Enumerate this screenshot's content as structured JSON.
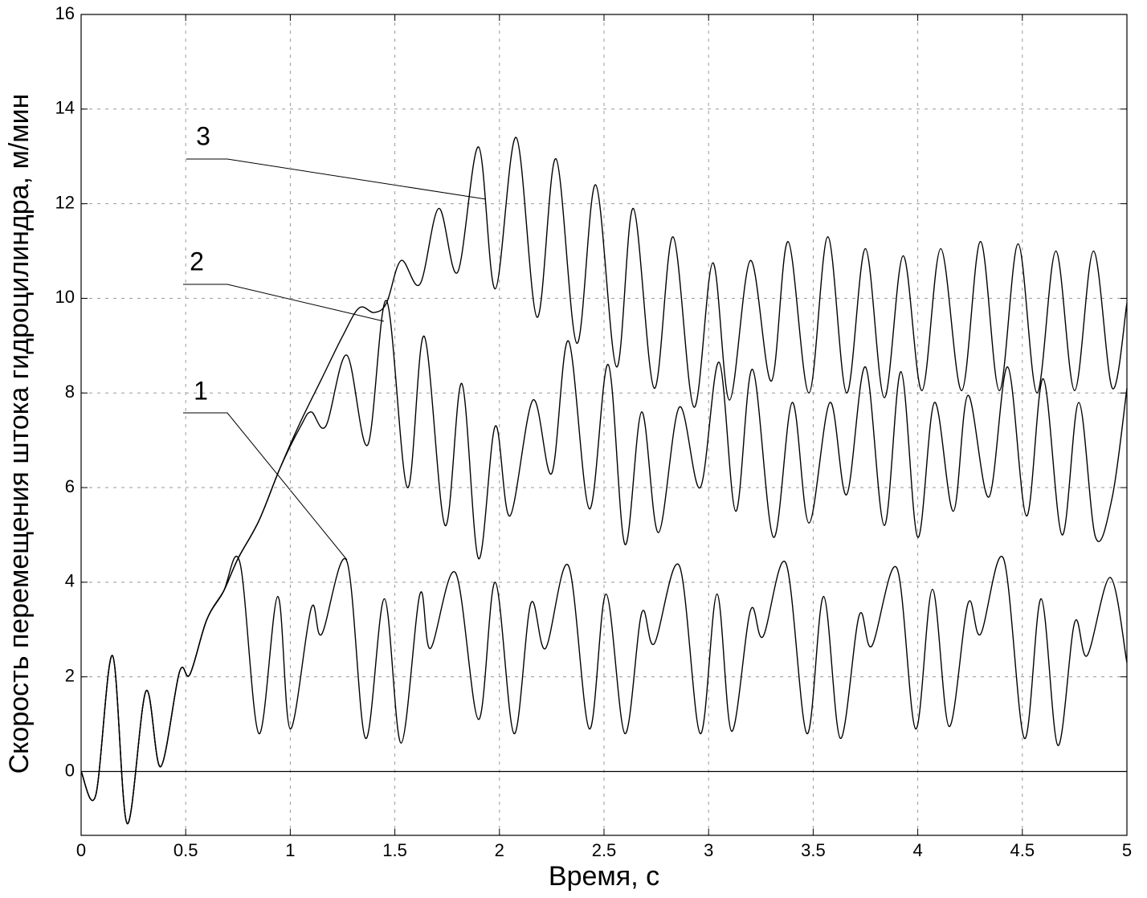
{
  "chart_data": {
    "type": "line",
    "xlabel": "Время, с",
    "ylabel": "Скорость перемещения штока гидроцилиндра, м/мин",
    "xlim": [
      0,
      5
    ],
    "ylim": [
      -1.35,
      16
    ],
    "xticks": [
      0,
      0.5,
      1,
      1.5,
      2,
      2.5,
      3,
      3.5,
      4,
      4.5,
      5
    ],
    "yticks": [
      0,
      2,
      4,
      6,
      8,
      10,
      12,
      14,
      16
    ],
    "grid": true,
    "series": [
      {
        "name": "1",
        "color": "#000000",
        "x": [
          0,
          0.07,
          0.15,
          0.22,
          0.31,
          0.38,
          0.47,
          0.52,
          0.6,
          0.68,
          0.76,
          0.85,
          0.94,
          1.0,
          1.1,
          1.15,
          1.27,
          1.36,
          1.45,
          1.53,
          1.62,
          1.67,
          1.79,
          1.9,
          1.98,
          2.07,
          2.15,
          2.22,
          2.33,
          2.43,
          2.51,
          2.6,
          2.68,
          2.74,
          2.86,
          2.96,
          3.04,
          3.11,
          3.2,
          3.26,
          3.37,
          3.47,
          3.55,
          3.63,
          3.72,
          3.78,
          3.9,
          3.99,
          4.07,
          4.15,
          4.24,
          4.3,
          4.41,
          4.51,
          4.59,
          4.67,
          4.75,
          4.81,
          4.92,
          5.0
        ],
        "values": [
          0,
          -0.5,
          2.45,
          -1.1,
          1.7,
          0.1,
          2.1,
          2.05,
          3.2,
          3.8,
          4.4,
          0.8,
          3.7,
          0.9,
          3.45,
          2.9,
          4.45,
          0.7,
          3.65,
          0.6,
          3.75,
          2.6,
          4.2,
          1.1,
          4.0,
          0.8,
          3.55,
          2.6,
          4.35,
          0.9,
          3.75,
          0.8,
          3.35,
          2.7,
          4.35,
          0.8,
          3.75,
          0.85,
          3.4,
          2.85,
          4.4,
          0.8,
          3.7,
          0.7,
          3.3,
          2.65,
          4.3,
          0.9,
          3.85,
          0.95,
          3.55,
          2.9,
          4.5,
          0.7,
          3.65,
          0.55,
          3.15,
          2.45,
          4.1,
          2.3
        ]
      },
      {
        "name": "2",
        "color": "#000000",
        "x": [
          0,
          0.07,
          0.15,
          0.22,
          0.31,
          0.38,
          0.47,
          0.52,
          0.6,
          0.68,
          0.75,
          0.85,
          0.95,
          1.05,
          1.1,
          1.17,
          1.27,
          1.37,
          1.46,
          1.56,
          1.64,
          1.74,
          1.82,
          1.9,
          1.98,
          2.05,
          2.16,
          2.25,
          2.33,
          2.43,
          2.52,
          2.6,
          2.68,
          2.76,
          2.86,
          2.96,
          3.05,
          3.13,
          3.21,
          3.31,
          3.4,
          3.48,
          3.58,
          3.66,
          3.75,
          3.84,
          3.92,
          4.0,
          4.08,
          4.17,
          4.24,
          4.34,
          4.43,
          4.52,
          4.6,
          4.69,
          4.77,
          4.85,
          4.93,
          5.0
        ],
        "values": [
          0,
          -0.5,
          2.45,
          -1.1,
          1.7,
          0.1,
          2.1,
          2.05,
          3.2,
          3.8,
          4.5,
          5.3,
          6.4,
          7.3,
          7.6,
          7.3,
          8.8,
          6.9,
          9.95,
          6.0,
          9.2,
          5.2,
          8.2,
          4.5,
          7.3,
          5.4,
          7.85,
          6.3,
          9.1,
          5.55,
          8.6,
          4.8,
          7.6,
          5.05,
          7.7,
          6.0,
          8.65,
          5.5,
          8.5,
          4.95,
          7.8,
          5.25,
          7.8,
          5.85,
          8.55,
          5.2,
          8.45,
          4.95,
          7.8,
          5.5,
          7.95,
          5.8,
          8.55,
          5.4,
          8.3,
          5.0,
          7.8,
          4.95,
          5.8,
          8.1
        ]
      },
      {
        "name": "3",
        "color": "#000000",
        "x": [
          0,
          0.07,
          0.15,
          0.22,
          0.31,
          0.38,
          0.47,
          0.52,
          0.6,
          0.68,
          0.75,
          0.85,
          0.95,
          1.05,
          1.15,
          1.25,
          1.33,
          1.4,
          1.46,
          1.53,
          1.62,
          1.71,
          1.8,
          1.9,
          1.98,
          2.08,
          2.18,
          2.27,
          2.37,
          2.46,
          2.56,
          2.64,
          2.74,
          2.83,
          2.93,
          3.02,
          3.1,
          3.2,
          3.3,
          3.38,
          3.48,
          3.57,
          3.66,
          3.75,
          3.84,
          3.93,
          4.02,
          4.11,
          4.21,
          4.3,
          4.39,
          4.48,
          4.57,
          4.66,
          4.75,
          4.84,
          4.93,
          5.0
        ],
        "values": [
          0,
          -0.5,
          2.45,
          -1.1,
          1.7,
          0.1,
          2.1,
          2.05,
          3.2,
          3.8,
          4.5,
          5.3,
          6.4,
          7.4,
          8.3,
          9.2,
          9.8,
          9.7,
          9.9,
          10.8,
          10.3,
          11.9,
          10.55,
          13.2,
          10.2,
          13.4,
          9.6,
          12.95,
          9.05,
          12.4,
          8.55,
          11.9,
          8.1,
          11.3,
          7.7,
          10.75,
          7.85,
          10.8,
          8.25,
          11.2,
          8.0,
          11.3,
          8.0,
          11.05,
          7.9,
          10.9,
          8.05,
          11.05,
          8.05,
          11.2,
          8.05,
          11.15,
          8.0,
          11.0,
          8.05,
          11.0,
          8.1,
          9.9
        ]
      }
    ]
  }
}
